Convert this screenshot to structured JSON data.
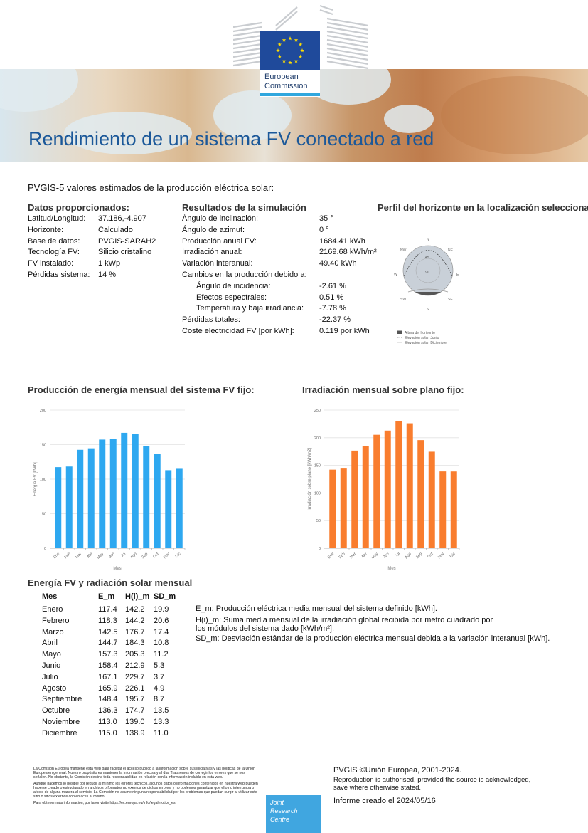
{
  "header": {
    "logo_text_line1": "European",
    "logo_text_line2": "Commission",
    "title": "Rendimiento de un sistema FV conectado a red"
  },
  "subtitle": "PVGIS-5 valores estimados de la producción eléctrica solar:",
  "provided": {
    "heading": "Datos proporcionados:",
    "rows": [
      {
        "label": "Latitud/Longitud:",
        "value": "37.186,-4.907"
      },
      {
        "label": "Horizonte:",
        "value": "Calculado"
      },
      {
        "label": "Base de datos:",
        "value": "PVGIS-SARAH2"
      },
      {
        "label": "Tecnología FV:",
        "value": "Silicio cristalino"
      },
      {
        "label": "FV instalado:",
        "value": "1 kWp"
      },
      {
        "label": "Pérdidas sistema:",
        "value": "14 %"
      }
    ]
  },
  "simulation": {
    "heading": "Resultados de la simulación",
    "rows": [
      {
        "label": "Ángulo de inclinación:",
        "value": "35 °",
        "indent": false
      },
      {
        "label": "Ángulo de azimut:",
        "value": "0 °",
        "indent": false
      },
      {
        "label": "Producción anual FV:",
        "value": "1684.41 kWh",
        "indent": false
      },
      {
        "label": "Irradiación anual:",
        "value": "2169.68 kWh/m²",
        "indent": false
      },
      {
        "label": "Variación interanual:",
        "value": "49.40 kWh",
        "indent": false
      },
      {
        "label": "Cambios en la producción debido a:",
        "value": "",
        "indent": false
      },
      {
        "label": "Ángulo de incidencia:",
        "value": "-2.61 %",
        "indent": true
      },
      {
        "label": "Efectos espectrales:",
        "value": "0.51 %",
        "indent": true
      },
      {
        "label": "Temperatura y baja irradiancia:",
        "value": "-7.78 %",
        "indent": true
      },
      {
        "label": "Pérdidas totales:",
        "value": "-22.37 %",
        "indent": false
      },
      {
        "label": "Coste electricidad FV [por kWh]:",
        "value": "0.119 por kWh",
        "indent": false
      }
    ]
  },
  "horizon": {
    "heading": "Perfil del horizonte en la localización seleccionada:",
    "compass": {
      "N": "N",
      "NE": "NE",
      "E": "E",
      "SE": "SE",
      "S": "S",
      "SW": "SW",
      "W": "W",
      "NW": "NW"
    },
    "ring_45": "45",
    "ring_90": "90",
    "legend": [
      "Altura del horizonte",
      "Elevación solar, Junio",
      "Elevación solar, Diciembre"
    ],
    "colors": {
      "horizon": "#666666",
      "sky": "#c9d0d8"
    }
  },
  "chart_data": [
    {
      "type": "bar",
      "title": "Producción de energía mensual del sistema FV fijo:",
      "xlabel": "Mes",
      "ylabel": "Energía FV [kWh]",
      "categories": [
        "Ene",
        "Feb",
        "Mar",
        "Abr",
        "May",
        "Jun",
        "Jul",
        "Ago",
        "Sep",
        "Oct",
        "Nov",
        "Dic"
      ],
      "values": [
        117.4,
        118.3,
        142.5,
        144.7,
        157.3,
        158.4,
        167.1,
        165.9,
        148.4,
        136.3,
        113.0,
        115.0
      ],
      "ylim": [
        0,
        200
      ],
      "yticks": [
        0,
        50,
        100,
        150,
        200
      ],
      "color": "#2ea8f0",
      "grid": true
    },
    {
      "type": "bar",
      "title": "Irradiación mensual sobre plano fijo:",
      "xlabel": "Mes",
      "ylabel": "Irradiación sobre plano [kWh/m2]",
      "categories": [
        "Ene",
        "Feb",
        "Mar",
        "Abr",
        "May",
        "Jun",
        "Jul",
        "Ago",
        "Sep",
        "Oct",
        "Nov",
        "Dic"
      ],
      "values": [
        142.2,
        144.2,
        176.7,
        184.3,
        205.3,
        212.9,
        229.7,
        226.1,
        195.7,
        174.7,
        139.0,
        138.9
      ],
      "ylim": [
        0,
        250
      ],
      "yticks": [
        0,
        50,
        100,
        150,
        200,
        250
      ],
      "color": "#f97d2e",
      "grid": true
    }
  ],
  "monthly_table": {
    "heading": "Energía FV y radiación solar mensual",
    "columns": [
      "Mes",
      "E_m",
      "H(i)_m",
      "SD_m"
    ],
    "rows": [
      [
        "Enero",
        "117.4",
        "142.2",
        "19.9"
      ],
      [
        "Febrero",
        "118.3",
        "144.2",
        "20.6"
      ],
      [
        "Marzo",
        "142.5",
        "176.7",
        "17.4"
      ],
      [
        "Abril",
        "144.7",
        "184.3",
        "10.8"
      ],
      [
        "Mayo",
        "157.3",
        "205.3",
        "11.2"
      ],
      [
        "Junio",
        "158.4",
        "212.9",
        "5.3"
      ],
      [
        "Julio",
        "167.1",
        "229.7",
        "3.7"
      ],
      [
        "Agosto",
        "165.9",
        "226.1",
        "4.9"
      ],
      [
        "Septiembre",
        "148.4",
        "195.7",
        "8.7"
      ],
      [
        "Octubre",
        "136.3",
        "174.7",
        "13.5"
      ],
      [
        "Noviembre",
        "113.0",
        "139.0",
        "13.3"
      ],
      [
        "Diciembre",
        "115.0",
        "138.9",
        "11.0"
      ]
    ],
    "notes": {
      "em": "E_m: Producción eléctrica media mensual del sistema definido [kWh].",
      "hm1": "H(i)_m: Suma media mensual de la irradiación global recibida por metro cuadrado por",
      "hm2": "los módulos del sistema dado [kWh/m²].",
      "sd": "SD_m: Desviación estándar de la producción eléctrica mensual debida a la variación interanual [kWh]."
    }
  },
  "footer": {
    "disclaimer1": "La Comisión Europea mantiene esta web para facilitar el acceso público a la información sobre sus iniciativas y las políticas de la Unión Europea en general. Nuestro propósito es mantener la información precisa y al día. Trataremos de corregir los errores que se nos señalen. No obstante, la Comisión declina toda responsabilidad en relación con la información incluida en esta web.",
    "disclaimer2": "Aunque hacemos lo posible por reducir al mínimo los errores técnicos, algunos datos o informaciones contenidos en nuestra web pueden haberse creado o estructurado en archivos o formatos no exentos de dichos errores, y no podemos garantizar que ello no interrumpa o afecte de alguna manera al servicio. La Comisión no asume ninguna responsabilidad por los problemas que puedan surgir al utilizar este sitio o sitios externos con enlaces al mismo.",
    "disclaimer3": "Para obtener más información, por favor visite https://ec.europa.eu/info/legal-notice_es",
    "jrc1": "Joint",
    "jrc2": "Research",
    "jrc3": "Centre",
    "copyright": "PVGIS ©Unión Europea, 2001-2024.",
    "reproduction1": "Reproduction is authorised, provided the source is acknowledged,",
    "reproduction2": "save where otherwise stated.",
    "report_date": "Informe creado el 2024/05/16"
  }
}
